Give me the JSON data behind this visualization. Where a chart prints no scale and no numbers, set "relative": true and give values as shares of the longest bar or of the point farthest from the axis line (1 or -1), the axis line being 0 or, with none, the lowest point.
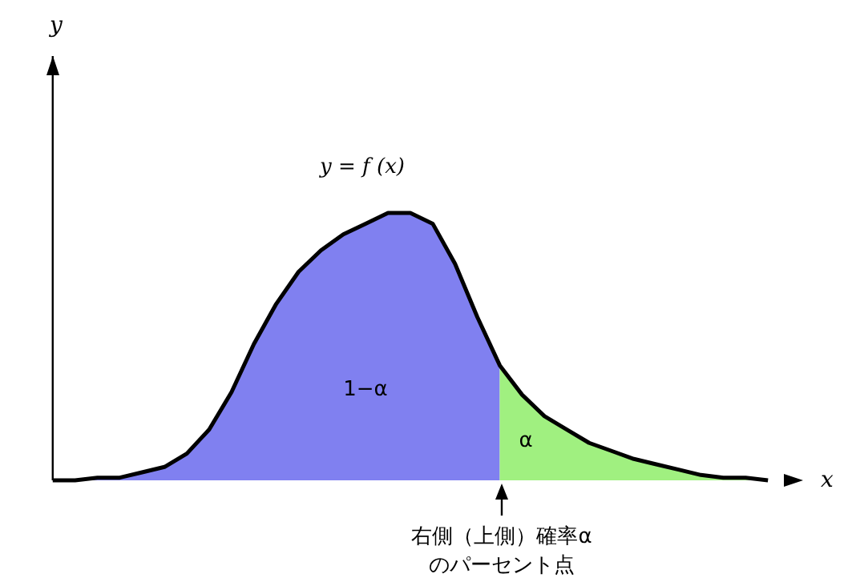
{
  "chart_data": {
    "type": "area",
    "relative": true,
    "categories": [
      null,
      null,
      null,
      null,
      null,
      null,
      null,
      null,
      null,
      null,
      null,
      null,
      null,
      null,
      null,
      null,
      null,
      null,
      null,
      null,
      null,
      null,
      null,
      null,
      null,
      null,
      null,
      null,
      null,
      null,
      null,
      null,
      null
    ],
    "series": [
      {
        "color": "#8080f0",
        "values": [
          0,
          0,
          0.01,
          0.01,
          0.03,
          0.05,
          0.1,
          0.19,
          0.33,
          0.51,
          0.66,
          0.78,
          0.86,
          0.92,
          0.96,
          1,
          1,
          0.96,
          0.81,
          0.61,
          0.43,
          null,
          null,
          null,
          null,
          null,
          null,
          null,
          null,
          null,
          null,
          null,
          null
        ]
      },
      {
        "color": "#a0f080",
        "values": [
          null,
          null,
          null,
          null,
          null,
          null,
          null,
          null,
          null,
          null,
          null,
          null,
          null,
          null,
          null,
          null,
          null,
          null,
          null,
          null,
          0.43,
          0.32,
          0.24,
          0.19,
          0.14,
          0.11,
          0.08,
          0.06,
          0.04,
          0.02,
          0.01,
          0.01,
          0
        ]
      },
      {
        "type": "line",
        "color": "#000000",
        "values": [
          0,
          0,
          0.01,
          0.01,
          0.03,
          0.05,
          0.1,
          0.19,
          0.33,
          0.51,
          0.66,
          0.78,
          0.86,
          0.92,
          0.96,
          1,
          1,
          0.96,
          0.81,
          0.61,
          0.43,
          0.32,
          0.24,
          0.19,
          0.14,
          0.11,
          0.08,
          0.06,
          0.04,
          0.02,
          0.01,
          0.01,
          0
        ]
      }
    ],
    "annotations": [
      "y = f (x)",
      "1−α",
      "α",
      "右側（上側）確率α\nのパーセント点",
      "y",
      "x"
    ]
  }
}
